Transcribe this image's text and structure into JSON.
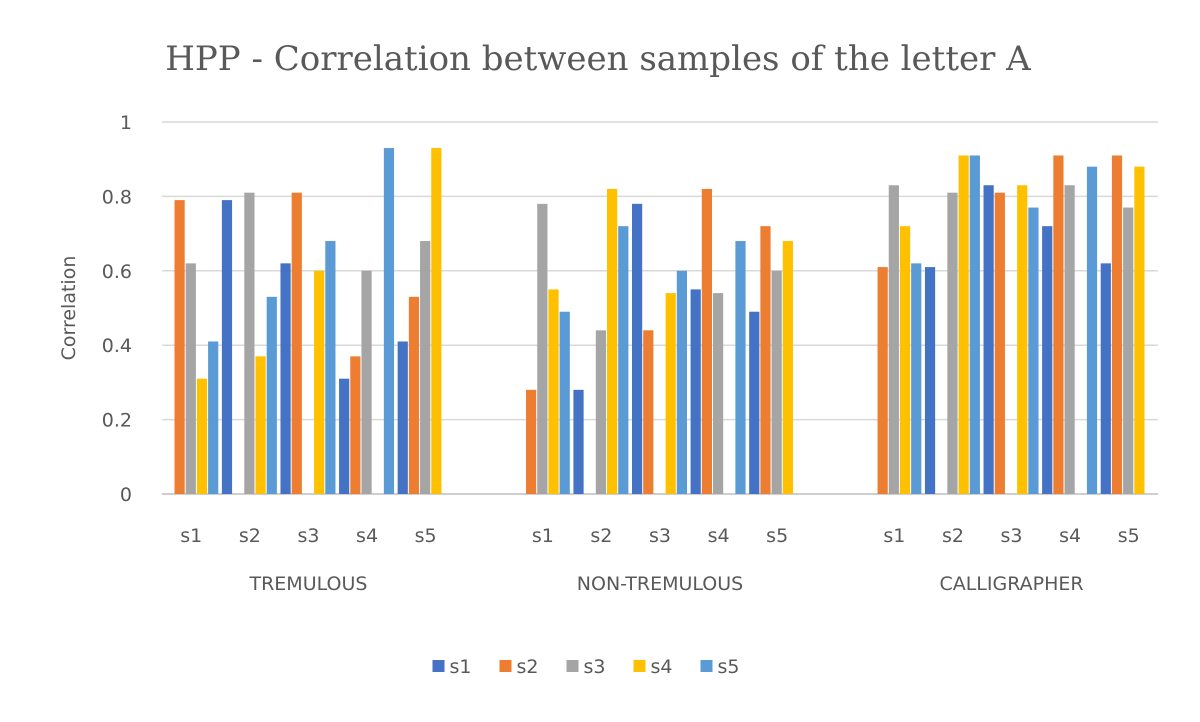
{
  "chart_data": {
    "type": "bar",
    "title": "HPP - Correlation between samples of the letter A",
    "ylabel": "Correlation",
    "xlabel": "",
    "ylim": [
      0,
      1
    ],
    "yticks": [
      "0",
      "0.2",
      "0.4",
      "0.6",
      "0.8",
      "1"
    ],
    "grid": true,
    "legend_position": "bottom",
    "groups": [
      {
        "name": "TREMULOUS",
        "categories": [
          "s1",
          "s2",
          "s3",
          "s4",
          "s5"
        ],
        "series": [
          {
            "name": "s1",
            "values": [
              0,
              0.79,
              0.62,
              0.31,
              0.41
            ]
          },
          {
            "name": "s2",
            "values": [
              0.79,
              0,
              0.81,
              0.37,
              0.53
            ]
          },
          {
            "name": "s3",
            "values": [
              0.62,
              0.81,
              0,
              0.6,
              0.68
            ]
          },
          {
            "name": "s4",
            "values": [
              0.31,
              0.37,
              0.6,
              0,
              0.93
            ]
          },
          {
            "name": "s5",
            "values": [
              0.41,
              0.53,
              0.68,
              0.93,
              0
            ]
          }
        ]
      },
      {
        "name": "NON-TREMULOUS",
        "categories": [
          "s1",
          "s2",
          "s3",
          "s4",
          "s5"
        ],
        "series": [
          {
            "name": "s1",
            "values": [
              0,
              0.28,
              0.78,
              0.55,
              0.49
            ]
          },
          {
            "name": "s2",
            "values": [
              0.28,
              0,
              0.44,
              0.82,
              0.72
            ]
          },
          {
            "name": "s3",
            "values": [
              0.78,
              0.44,
              0,
              0.54,
              0.6
            ]
          },
          {
            "name": "s4",
            "values": [
              0.55,
              0.82,
              0.54,
              0,
              0.68
            ]
          },
          {
            "name": "s5",
            "values": [
              0.49,
              0.72,
              0.6,
              0.68,
              0
            ]
          }
        ]
      },
      {
        "name": "CALLIGRAPHER",
        "categories": [
          "s1",
          "s2",
          "s3",
          "s4",
          "s5"
        ],
        "series": [
          {
            "name": "s1",
            "values": [
              0,
              0.61,
              0.83,
              0.72,
              0.62
            ]
          },
          {
            "name": "s2",
            "values": [
              0.61,
              0,
              0.81,
              0.91,
              0.91
            ]
          },
          {
            "name": "s3",
            "values": [
              0.83,
              0.81,
              0,
              0.83,
              0.77
            ]
          },
          {
            "name": "s4",
            "values": [
              0.72,
              0.91,
              0.83,
              0,
              0.88
            ]
          },
          {
            "name": "s5",
            "values": [
              0.62,
              0.91,
              0.77,
              0.88,
              0
            ]
          }
        ]
      }
    ],
    "colors": {
      "s1": "#4472c4",
      "s2": "#ed7d31",
      "s3": "#a5a5a5",
      "s4": "#ffc000",
      "s5": "#5b9bd5",
      "gridline": "#d9d9d9",
      "text": "#595959",
      "frame": "#bfbfbf"
    }
  }
}
